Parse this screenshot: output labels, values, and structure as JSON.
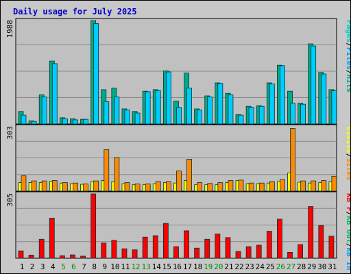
{
  "chart_data": {
    "type": "bar",
    "title": "Daily usage for July 2025",
    "categories": [
      "1",
      "2",
      "3",
      "4",
      "5",
      "6",
      "7",
      "8",
      "9",
      "10",
      "11",
      "12",
      "13",
      "14",
      "15",
      "16",
      "17",
      "18",
      "19",
      "20",
      "21",
      "22",
      "23",
      "24",
      "25",
      "26",
      "27",
      "28",
      "29",
      "30",
      "31"
    ],
    "weekend_days": [
      "5",
      "6",
      "12",
      "13",
      "19",
      "20",
      "26",
      "27"
    ],
    "colors": {
      "pages": "#00cccc",
      "files": "#00ccff",
      "hits": "#00aa88",
      "visits": "#ffff00",
      "sites": "#ff8800",
      "kb_in": "#0099ff",
      "kb_out": "#00bb66",
      "kb_f": "#ff0000",
      "weekday_label": "#000000",
      "weekend_label": "#008800",
      "plot_bg": "#c0c0c0",
      "frame_bg": "#c8c8c8",
      "gridline": "#888888"
    },
    "panels": [
      {
        "id": "hits_files_pages",
        "ymax_label": "1988",
        "ylim": [
          0,
          1988
        ],
        "legend": [
          {
            "text": "Pages",
            "color": "#00cccc"
          },
          {
            "text": "/",
            "color": "#000000"
          },
          {
            "text": "Files",
            "color": "#0099ff"
          },
          {
            "text": "/",
            "color": "#000000"
          },
          {
            "text": "Hits",
            "color": "#00aa88"
          }
        ],
        "series": [
          {
            "name": "Hits",
            "color": "#00aa88",
            "values": [
              240,
              60,
              560,
              1210,
              120,
              100,
              90,
              1988,
              660,
              690,
              290,
              240,
              630,
              660,
              1020,
              440,
              980,
              290,
              540,
              790,
              590,
              180,
              340,
              350,
              790,
              1130,
              630,
              400,
              1540,
              990,
              660
            ]
          },
          {
            "name": "Files",
            "color": "#00ccff",
            "values": [
              170,
              50,
              520,
              1160,
              100,
              80,
              90,
              1930,
              430,
              520,
              270,
              210,
              620,
              640,
              1000,
              320,
              690,
              270,
              520,
              780,
              560,
              170,
              320,
              340,
              770,
              1120,
              400,
              380,
              1500,
              960,
              640
            ]
          }
        ]
      },
      {
        "id": "visits_sites",
        "ymax_label": "303",
        "ylim": [
          0,
          303
        ],
        "legend": [
          {
            "text": "Visits",
            "color": "#ffff00"
          },
          {
            "text": "/",
            "color": "#000000"
          },
          {
            "text": "Sites",
            "color": "#ff8800"
          }
        ],
        "series": [
          {
            "name": "Visits",
            "color": "#ffff00",
            "values": [
              40,
              40,
              40,
              45,
              38,
              35,
              32,
              45,
              50,
              45,
              35,
              30,
              30,
              35,
              40,
              38,
              50,
              30,
              30,
              30,
              40,
              50,
              35,
              35,
              38,
              45,
              85,
              42,
              38,
              40,
              45
            ]
          },
          {
            "name": "Sites",
            "color": "#ff8800",
            "values": [
              72,
              48,
              48,
              50,
              40,
              38,
              34,
              48,
              195,
              158,
              40,
              34,
              34,
              45,
              45,
              95,
              150,
              40,
              36,
              40,
              50,
              52,
              38,
              38,
              45,
              55,
              295,
              48,
              48,
              50,
              70
            ]
          }
        ]
      },
      {
        "id": "kbytes",
        "ymax_label": "305",
        "ylim": [
          0,
          305
        ],
        "legend": [
          {
            "text": "KB F",
            "color": "#ff0000"
          },
          {
            "text": "/",
            "color": "#000000"
          },
          {
            "text": "KB Out",
            "color": "#00bb66"
          },
          {
            "text": "/",
            "color": "#000000"
          },
          {
            "text": "KB In",
            "color": "#0099ff"
          }
        ],
        "series": [
          {
            "name": "KB F",
            "color": "#ff0000",
            "values": [
              35,
              15,
              90,
              190,
              12,
              16,
              10,
              305,
              72,
              85,
              45,
              40,
              100,
              107,
              165,
              55,
              130,
              48,
              90,
              115,
              98,
              32,
              55,
              62,
              128,
              185,
              28,
              65,
              245,
              155,
              105
            ]
          }
        ]
      }
    ]
  }
}
